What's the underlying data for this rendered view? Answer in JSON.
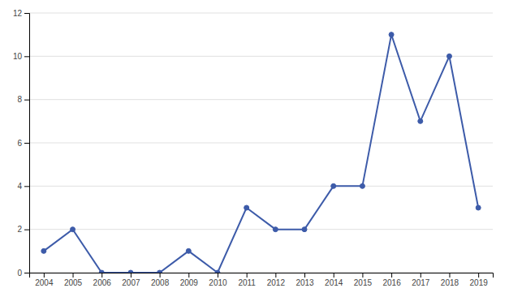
{
  "chart_data": {
    "type": "line",
    "x": [
      2004,
      2005,
      2006,
      2007,
      2008,
      2009,
      2010,
      2011,
      2012,
      2013,
      2014,
      2015,
      2016,
      2017,
      2018,
      2019
    ],
    "values": [
      1,
      2,
      0,
      0,
      0,
      1,
      0,
      3,
      2,
      2,
      4,
      4,
      11,
      7,
      10,
      3
    ],
    "color": "#3D5BA9",
    "marker": "circle",
    "xlim": [
      2003.5,
      2019.5
    ],
    "xticks": [
      2004,
      2005,
      2006,
      2007,
      2008,
      2009,
      2010,
      2011,
      2012,
      2013,
      2014,
      2015,
      2016,
      2017,
      2018,
      2019
    ],
    "ylim": [
      0,
      12
    ],
    "yticks": [
      0,
      2,
      4,
      6,
      8,
      10,
      12
    ],
    "grid": true
  }
}
